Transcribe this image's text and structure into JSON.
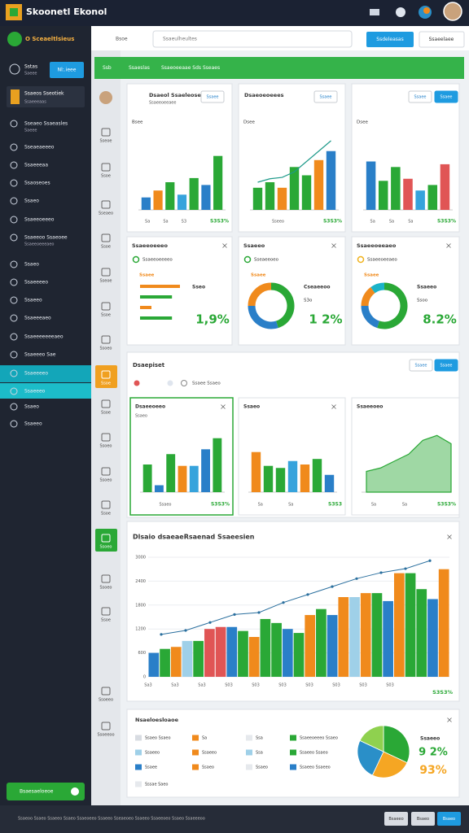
{
  "header": {
    "title": "Skoonetl Ekonol"
  },
  "toolbar": {
    "brand": "O Sceaeltlsieus",
    "search_label": "Bsoe",
    "search_placeholder": "Ssaeulheultes",
    "button_primary": "Ssdeleasas",
    "button_secondary": "Ssaeelaee"
  },
  "sidebar": {
    "user": "Sstas",
    "user_sub": "Saeee",
    "user_button": "Nl:.ieee",
    "project": "Ssaeos Sseotiek",
    "project_sub": "Ssaeeeaas",
    "items": [
      {
        "label": "Sseaeo Ssaeasles",
        "sub": "Saeee"
      },
      {
        "label": "Sseaeaeeeo"
      },
      {
        "label": "Ssaeeeaa"
      },
      {
        "label": "Ssaoseoes"
      },
      {
        "label": "Ssaeo"
      },
      {
        "label": "Ssaeeoeeeo"
      },
      {
        "label": "Ssaeeoo Ssaeoee",
        "sub": "Ssaeeoeeeaeo"
      },
      {
        "label": "Ssaeo"
      },
      {
        "label": "Ssaeeeeo"
      },
      {
        "label": "Ssaeeo"
      },
      {
        "label": "Ssaeeeaeo"
      },
      {
        "label": "Ssaeeeeeeeaeo"
      },
      {
        "label": "Ssaeeeo Sae"
      },
      {
        "label": "Ssaeeeeo"
      },
      {
        "label": "Ssaeeeo"
      },
      {
        "label": "Ssaeo"
      },
      {
        "label": "Ssaeeo"
      }
    ],
    "footer_button": "Bsaesaeloeoe"
  },
  "banner": {
    "items": [
      "Ssb",
      "Ssaeslas",
      "Ssaeoeeaae Sds Sseaes"
    ]
  },
  "icon_column": [
    "Sseoe",
    "Ssoe",
    "Sseaeo",
    "Ssoe",
    "Sseoe",
    "Ssoe",
    "Ssoeo",
    "Ssoe",
    "Ssoe",
    "Ssoeo",
    "Ssoeo",
    "Ssoe",
    "Ssoeo",
    "Ssoeo",
    "Ssoe",
    "Ssoeeo",
    "Ssoeeoo"
  ],
  "bar_cards": [
    {
      "title": "Dsaeol Ssaeleoses",
      "subtitle": "Ssaeeoeeaee",
      "tags": [
        "Ssaee"
      ],
      "label": "Bsee",
      "values": [
        18,
        28,
        40,
        22,
        46,
        36,
        78
      ],
      "colors": [
        "#2a7fc8",
        "#f08a1c",
        "#2aa836",
        "#36a3dc",
        "#2aa836",
        "#2a7fc8",
        "#2aa836"
      ],
      "xlabels": [
        "Sa",
        "Sa",
        "S3"
      ],
      "value_label": "S3S3%"
    },
    {
      "title": "Dsaeoeoeees",
      "tags": [
        "Ssaee"
      ],
      "label": "Dsee",
      "values": [
        32,
        40,
        32,
        62,
        50,
        72,
        85
      ],
      "colors": [
        "#2aa836",
        "#2aa836",
        "#f08a1c",
        "#2aa836",
        "#2aa836",
        "#f08a1c",
        "#2a7fc8"
      ],
      "line": [
        40,
        45,
        47,
        55,
        70,
        85,
        100
      ],
      "line_color": "#1e9a8a",
      "xlabels": [
        "Sseeo"
      ],
      "value_label": "S3S3%"
    },
    {
      "tags": [
        "Ssaee",
        "Ssaee"
      ],
      "label": "Dsee",
      "values": [
        70,
        42,
        62,
        45,
        28,
        36,
        66
      ],
      "colors": [
        "#2a7fc8",
        "#2aa836",
        "#2aa836",
        "#e05555",
        "#36a3dc",
        "#2aa836",
        "#e05555"
      ],
      "xlabels": [
        "Sa",
        "Sa",
        "Sa"
      ],
      "value_label": "S3S3%"
    }
  ],
  "donut_cards": [
    {
      "title": "Ssaeeoeeeo",
      "legend": "Ssaeeoeeeeo",
      "legend_color": "#2aa836",
      "label": "Ssaee",
      "values": [
        35,
        28,
        10,
        28
      ],
      "colors": [
        "#f08a1c",
        "#2aa836",
        "#f08a1c",
        "#2aa836"
      ],
      "notes": [
        "Sseo"
      ],
      "big": "1,9%"
    },
    {
      "title": "Ssaeeo",
      "legend": "Sseaeeoeo",
      "legend_color": "#2aa836",
      "label": "Ssaee",
      "values": [
        45,
        30,
        25
      ],
      "colors": [
        "#2aa836",
        "#2a7fc8",
        "#f08a1c"
      ],
      "notes": [
        "Cseaeeoo",
        "S3o"
      ],
      "big": "1 2%"
    },
    {
      "title": "Ssaeeoeeaeo",
      "legend": "Ssaeeoeeaeo",
      "legend_color": "#f0b21c",
      "label": "Ssaee",
      "values": [
        55,
        20,
        15,
        10
      ],
      "colors": [
        "#2aa836",
        "#2a7fc8",
        "#f08a1c",
        "#1bb3c8"
      ],
      "notes": [
        "Ssaeeo",
        "Ssoo"
      ],
      "big": "8.2%"
    }
  ],
  "panel": {
    "title": "Dsaepiset",
    "tags": [
      "Ssaee",
      "Ssaee"
    ],
    "filter": "Ssaee Ssaeo",
    "cards": [
      {
        "title": "Dsaeeoeeo",
        "subtitle": "Ssaeo",
        "type": "bar",
        "values": [
          40,
          10,
          55,
          38,
          38,
          62,
          78
        ],
        "colors": [
          "#2aa836",
          "#2a7fc8",
          "#2aa836",
          "#f08a1c",
          "#36a3dc",
          "#2a7fc8",
          "#2aa836"
        ],
        "xlabels": [
          "Ssaeo"
        ],
        "value_label": "S3S3%"
      },
      {
        "title": "Ssaeo",
        "type": "bar",
        "values": [
          58,
          38,
          35,
          45,
          40,
          48,
          25
        ],
        "colors": [
          "#f08a1c",
          "#2aa836",
          "#2aa836",
          "#36a3dc",
          "#f08a1c",
          "#2aa836",
          "#2a7fc8"
        ],
        "xlabels": [
          "Sa",
          "Sa"
        ],
        "value_label": "S3S3"
      },
      {
        "title": "Ssaeeoeo",
        "type": "area",
        "values": [
          30,
          35,
          45,
          55,
          75,
          82,
          70
        ],
        "color": "#2aa836",
        "xlabels": [
          "Sa",
          "Sa"
        ],
        "value_label": "S3S3%"
      }
    ]
  },
  "big_chart": {
    "title": "Dlsaio dsaeaeRsaenad Ssaeesien",
    "ylim": [
      0,
      3000
    ],
    "yticks": [
      0,
      600,
      1200,
      1800,
      2400,
      3000
    ],
    "values": [
      600,
      700,
      750,
      900,
      900,
      1200,
      1250,
      1250,
      1150,
      1000,
      1450,
      1350,
      1200,
      1100,
      1550,
      1700,
      1550,
      2000,
      2000,
      2100,
      2100,
      1900,
      2600,
      2600,
      2200,
      1950,
      2700
    ],
    "colors": [
      "#2a7fc8",
      "#2aa836",
      "#f08a1c",
      "#9fd0e8",
      "#2aa836",
      "#e05555",
      "#e05555",
      "#2a7fc8",
      "#2aa836",
      "#f08a1c",
      "#2aa836",
      "#2aa836",
      "#2a7fc8",
      "#2aa836",
      "#f08a1c",
      "#2aa836",
      "#2a7fc8",
      "#f08a1c",
      "#9fd0e8",
      "#f08a1c",
      "#2aa836",
      "#2a7fc8",
      "#f08a1c",
      "#2aa836",
      "#2aa836",
      "#2a7fc8",
      "#f08a1c"
    ],
    "line": [
      900,
      1000,
      1200,
      1400,
      1450,
      1700,
      1900,
      2100,
      2300,
      2450,
      2550,
      2750
    ],
    "line_color": "#2a6f9e",
    "xlabels": [
      "Sa3",
      "Sa3",
      "Sa3",
      "S03",
      "S03",
      "S03",
      "S03",
      "S03",
      "S03",
      "S03"
    ],
    "value_label": "S3S3%"
  },
  "legend_card": {
    "title": "Nsaeloesloaoe",
    "columns": [
      [
        {
          "label": "Ssaeo Ssaeo",
          "color": "#d8dce2"
        },
        {
          "label": "Ssaeeo",
          "color": "#9fd0e8"
        },
        {
          "label": "Ssaee",
          "color": "#2a7fc8"
        },
        {
          "label": "Sssae Saeo",
          "color": "#e6e9ed"
        }
      ],
      [
        {
          "label": "Sa",
          "color": "#f08a1c"
        },
        {
          "label": "Ssaeeo",
          "color": "#f08a1c"
        },
        {
          "label": "Ssaeo",
          "color": "#f08a1c"
        }
      ],
      [
        {
          "label": "Ssa",
          "color": "#e6e9ed"
        },
        {
          "label": "Ssa",
          "color": "#9fd0e8"
        },
        {
          "label": "Ssaeo",
          "color": "#e6e9ed"
        }
      ],
      [
        {
          "label": "Ssaeeoeeeo Ssaeo",
          "color": "#2aa836"
        },
        {
          "label": "Ssaeeo Ssaeo",
          "color": "#2aa836"
        },
        {
          "label": "Ssaeeo Ssaeeo",
          "color": "#2a7fc8"
        }
      ]
    ],
    "pie": [
      32,
      25,
      25,
      18
    ],
    "pie_colors": [
      "#2aa836",
      "#f5a623",
      "#2a8fc8",
      "#8fd14f"
    ],
    "note": "Ssaeeo",
    "big1": "9 2%",
    "big2": "93%"
  },
  "footer": {
    "text": "Ssaeoo Ssaeo Ssaeeo Ssaeo Ssaeoeeo Ssaeeo Sseaeoeo Ssaeeo Ssaeeoeo Ssaeo Ssaeeeoo",
    "buttons": [
      "Bsaeeo",
      "Bsaeo",
      "Bsaeo"
    ]
  }
}
